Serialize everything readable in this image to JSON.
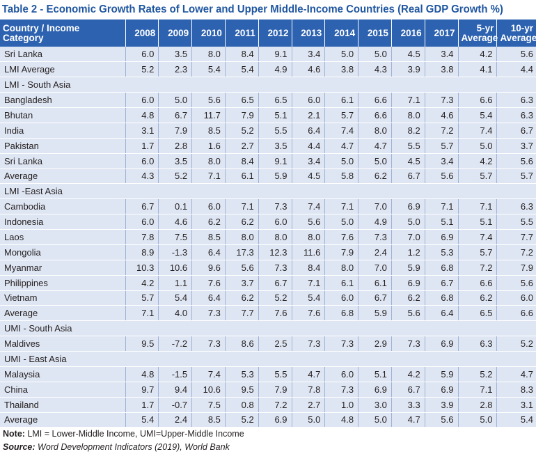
{
  "title": "Table 2 - Economic Growth Rates of Lower and Upper Middle-Income Countries (Real GDP Growth %)",
  "headers": [
    "Country / Income Category",
    "2008",
    "2009",
    "2010",
    "2011",
    "2012",
    "2013",
    "2014",
    "2015",
    "2016",
    "2017",
    "5-yr Average",
    "10-yr Average"
  ],
  "header_lines": {
    "five_yr_1": "5-yr",
    "five_yr_2": "Average",
    "ten_yr_1": "10-yr",
    "ten_yr_2": "Average"
  },
  "rows": [
    {
      "type": "data",
      "cells": [
        "Sri Lanka",
        "6.0",
        "3.5",
        "8.0",
        "8.4",
        "9.1",
        "3.4",
        "5.0",
        "5.0",
        "4.5",
        "3.4",
        "4.2",
        "5.6"
      ]
    },
    {
      "type": "data",
      "cells": [
        "LMI Average",
        "5.2",
        "2.3",
        "5.4",
        "5.4",
        "4.9",
        "4.6",
        "3.8",
        "4.3",
        "3.9",
        "3.8",
        "4.1",
        "4.4"
      ]
    },
    {
      "type": "section",
      "label": "LMI - South Asia"
    },
    {
      "type": "data",
      "cells": [
        "Bangladesh",
        "6.0",
        "5.0",
        "5.6",
        "6.5",
        "6.5",
        "6.0",
        "6.1",
        "6.6",
        "7.1",
        "7.3",
        "6.6",
        "6.3"
      ]
    },
    {
      "type": "data",
      "cells": [
        "Bhutan",
        "4.8",
        "6.7",
        "11.7",
        "7.9",
        "5.1",
        "2.1",
        "5.7",
        "6.6",
        "8.0",
        "4.6",
        "5.4",
        "6.3"
      ]
    },
    {
      "type": "data",
      "cells": [
        "India",
        "3.1",
        "7.9",
        "8.5",
        "5.2",
        "5.5",
        "6.4",
        "7.4",
        "8.0",
        "8.2",
        "7.2",
        "7.4",
        "6.7"
      ]
    },
    {
      "type": "data",
      "cells": [
        "Pakistan",
        "1.7",
        "2.8",
        "1.6",
        "2.7",
        "3.5",
        "4.4",
        "4.7",
        "4.7",
        "5.5",
        "5.7",
        "5.0",
        "3.7"
      ]
    },
    {
      "type": "data",
      "cells": [
        "Sri Lanka",
        "6.0",
        "3.5",
        "8.0",
        "8.4",
        "9.1",
        "3.4",
        "5.0",
        "5.0",
        "4.5",
        "3.4",
        "4.2",
        "5.6"
      ]
    },
    {
      "type": "data",
      "cells": [
        "Average",
        "4.3",
        "5.2",
        "7.1",
        "6.1",
        "5.9",
        "4.5",
        "5.8",
        "6.2",
        "6.7",
        "5.6",
        "5.7",
        "5.7"
      ]
    },
    {
      "type": "section",
      "label": "LMI -East Asia"
    },
    {
      "type": "data",
      "cells": [
        "Cambodia",
        "6.7",
        "0.1",
        "6.0",
        "7.1",
        "7.3",
        "7.4",
        "7.1",
        "7.0",
        "6.9",
        "7.1",
        "7.1",
        "6.3"
      ]
    },
    {
      "type": "data",
      "cells": [
        "Indonesia",
        "6.0",
        "4.6",
        "6.2",
        "6.2",
        "6.0",
        "5.6",
        "5.0",
        "4.9",
        "5.0",
        "5.1",
        "5.1",
        "5.5"
      ]
    },
    {
      "type": "data",
      "cells": [
        "Laos",
        "7.8",
        "7.5",
        "8.5",
        "8.0",
        "8.0",
        "8.0",
        "7.6",
        "7.3",
        "7.0",
        "6.9",
        "7.4",
        "7.7"
      ]
    },
    {
      "type": "data",
      "cells": [
        "Mongolia",
        "8.9",
        "-1.3",
        "6.4",
        "17.3",
        "12.3",
        "11.6",
        "7.9",
        "2.4",
        "1.2",
        "5.3",
        "5.7",
        "7.2"
      ]
    },
    {
      "type": "data",
      "cells": [
        "Myanmar",
        "10.3",
        "10.6",
        "9.6",
        "5.6",
        "7.3",
        "8.4",
        "8.0",
        "7.0",
        "5.9",
        "6.8",
        "7.2",
        "7.9"
      ]
    },
    {
      "type": "data",
      "cells": [
        "Philippines",
        "4.2",
        "1.1",
        "7.6",
        "3.7",
        "6.7",
        "7.1",
        "6.1",
        "6.1",
        "6.9",
        "6.7",
        "6.6",
        "5.6"
      ]
    },
    {
      "type": "data",
      "cells": [
        "Vietnam",
        "5.7",
        "5.4",
        "6.4",
        "6.2",
        "5.2",
        "5.4",
        "6.0",
        "6.7",
        "6.2",
        "6.8",
        "6.2",
        "6.0"
      ]
    },
    {
      "type": "data",
      "cells": [
        "Average",
        "7.1",
        "4.0",
        "7.3",
        "7.7",
        "7.6",
        "7.6",
        "6.8",
        "5.9",
        "5.6",
        "6.4",
        "6.5",
        "6.6"
      ]
    },
    {
      "type": "section",
      "label": "UMI - South Asia"
    },
    {
      "type": "data",
      "cells": [
        "Maldives",
        "9.5",
        "-7.2",
        "7.3",
        "8.6",
        "2.5",
        "7.3",
        "7.3",
        "2.9",
        "7.3",
        "6.9",
        "6.3",
        "5.2"
      ]
    },
    {
      "type": "section",
      "label": "UMI - East Asia"
    },
    {
      "type": "data",
      "cells": [
        "Malaysia",
        "4.8",
        "-1.5",
        "7.4",
        "5.3",
        "5.5",
        "4.7",
        "6.0",
        "5.1",
        "4.2",
        "5.9",
        "5.2",
        "4.7"
      ]
    },
    {
      "type": "data",
      "cells": [
        "China",
        "9.7",
        "9.4",
        "10.6",
        "9.5",
        "7.9",
        "7.8",
        "7.3",
        "6.9",
        "6.7",
        "6.9",
        "7.1",
        "8.3"
      ]
    },
    {
      "type": "data",
      "cells": [
        "Thailand",
        "1.7",
        "-0.7",
        "7.5",
        "0.8",
        "7.2",
        "2.7",
        "1.0",
        "3.0",
        "3.3",
        "3.9",
        "2.8",
        "3.1"
      ]
    },
    {
      "type": "data",
      "cells": [
        "Average",
        "5.4",
        "2.4",
        "8.5",
        "5.2",
        "6.9",
        "5.0",
        "4.8",
        "5.0",
        "4.7",
        "5.6",
        "5.0",
        "5.4"
      ]
    }
  ],
  "note_label": "Note:",
  "note_text": " LMI = Lower-Middle Income, UMI=Upper-Middle Income",
  "source_label": "Source:",
  "source_text": " Word Development Indicators (2019), World Bank",
  "colors": {
    "header_bg": "#2d62b0",
    "title": "#1f56a0",
    "row_bg": "#dfe6f3"
  }
}
